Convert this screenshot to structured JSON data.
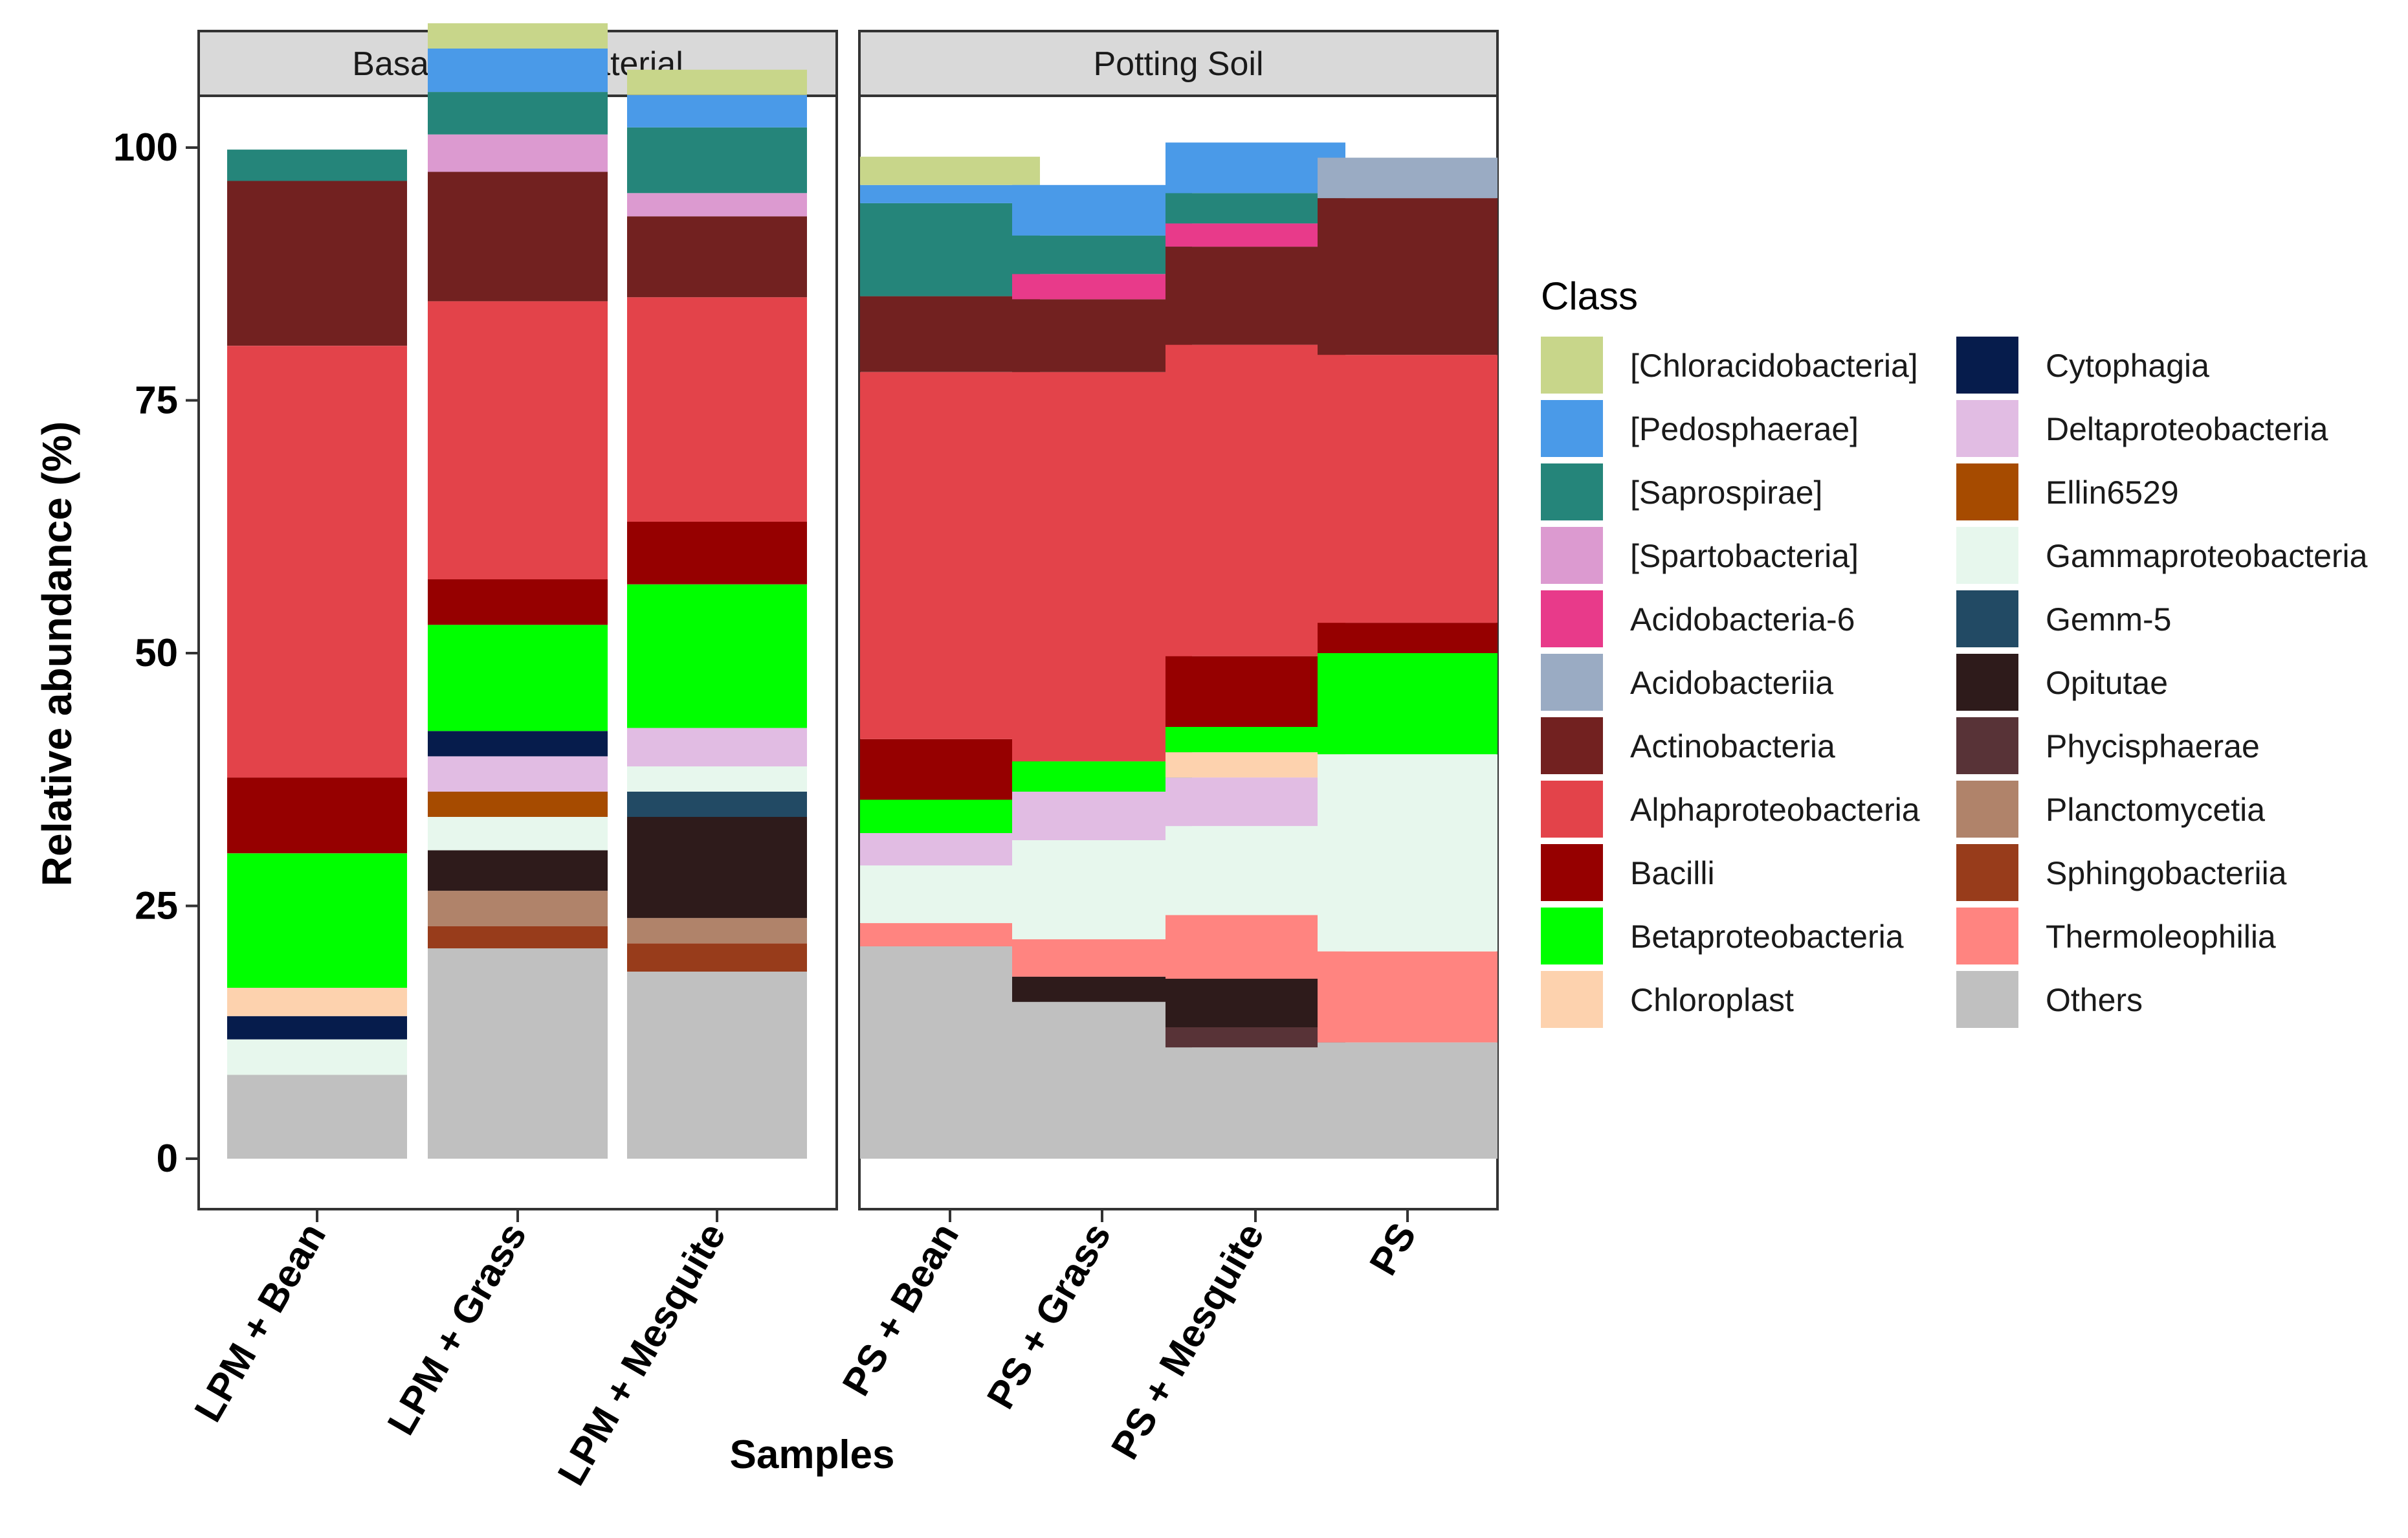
{
  "chart_data": {
    "type": "bar",
    "stacked": true,
    "ylabel": "Relative abundance (%)",
    "xlabel": "Samples",
    "ylim": [
      0,
      100
    ],
    "yticks": [
      0,
      25,
      50,
      75,
      100
    ],
    "legend_title": "Class",
    "legend_position": "right",
    "facets": [
      {
        "label": "Basalt Parent Material",
        "samples": [
          "LPM + Bean",
          "LPM + Grass",
          "LPM + Mesquite"
        ]
      },
      {
        "label": "Potting Soil",
        "samples": [
          "PS + Bean",
          "PS + Grass",
          "PS + Mesquite",
          "PS"
        ]
      }
    ],
    "classes": [
      {
        "name": "[Chloracidobacteria]",
        "color": "#c8d68a"
      },
      {
        "name": "[Pedosphaerae]",
        "color": "#4a9ae8"
      },
      {
        "name": "[Saprospirae]",
        "color": "#25857a"
      },
      {
        "name": "[Spartobacteria]",
        "color": "#dc9ad0"
      },
      {
        "name": "Acidobacteria-6",
        "color": "#e83a8a"
      },
      {
        "name": "Acidobacteriia",
        "color": "#9aabc3"
      },
      {
        "name": "Actinobacteria",
        "color": "#722120"
      },
      {
        "name": "Alphaproteobacteria",
        "color": "#e3434a"
      },
      {
        "name": "Bacilli",
        "color": "#960000"
      },
      {
        "name": "Betaproteobacteria",
        "color": "#00ff00"
      },
      {
        "name": "Chloroplast",
        "color": "#fdd2ae"
      },
      {
        "name": "Cytophagia",
        "color": "#061c4c"
      },
      {
        "name": "Deltaproteobacteria",
        "color": "#e1bce3"
      },
      {
        "name": "Ellin6529",
        "color": "#a64b00"
      },
      {
        "name": "Gammaproteobacteria",
        "color": "#e7f7ed"
      },
      {
        "name": "Gemm-5",
        "color": "#224a64"
      },
      {
        "name": "Opitutae",
        "color": "#2e1b1b"
      },
      {
        "name": "Phycisphaerae",
        "color": "#583337"
      },
      {
        "name": "Planctomycetia",
        "color": "#b0836a"
      },
      {
        "name": "Sphingobacteriia",
        "color": "#983c1b"
      },
      {
        "name": "Thermoleophilia",
        "color": "#ff8480"
      },
      {
        "name": "Others",
        "color": "#c0c0c0"
      }
    ],
    "stack_order_bottom_to_top": [
      "Others",
      "Sphingobacteriia",
      "Planctomycetia",
      "Phycisphaerae",
      "Opitutae",
      "Thermoleophilia",
      "Gemm-5",
      "Gammaproteobacteria",
      "Ellin6529",
      "Deltaproteobacteria",
      "Cytophagia",
      "Chloroplast",
      "Betaproteobacteria",
      "Bacilli",
      "Alphaproteobacteria",
      "Actinobacteria",
      "Acidobacteriia",
      "Acidobacteria-6",
      "[Spartobacteria]",
      "[Saprospirae]",
      "[Pedosphaerae]",
      "[Chloracidobacteria]"
    ],
    "series": [
      {
        "name": "Others",
        "values": [
          8.3,
          20.8,
          18.5,
          21.0,
          15.5,
          11.0,
          11.5
        ]
      },
      {
        "name": "Sphingobacteriia",
        "values": [
          0,
          2.2,
          2.8,
          0,
          0,
          0,
          0
        ]
      },
      {
        "name": "Planctomycetia",
        "values": [
          0,
          3.5,
          2.5,
          0,
          0,
          0,
          0
        ]
      },
      {
        "name": "Phycisphaerae",
        "values": [
          0,
          0,
          0,
          0,
          0,
          2.0,
          0
        ]
      },
      {
        "name": "Opitutae",
        "values": [
          0,
          4.0,
          10.0,
          0,
          2.5,
          4.8,
          0
        ]
      },
      {
        "name": "Thermoleophilia",
        "values": [
          0,
          0,
          0,
          2.3,
          3.7,
          6.3,
          9.0
        ]
      },
      {
        "name": "Gemm-5",
        "values": [
          0,
          0,
          2.5,
          0,
          0,
          0,
          0
        ]
      },
      {
        "name": "Gammaproteobacteria",
        "values": [
          3.5,
          3.3,
          2.5,
          5.7,
          9.8,
          8.8,
          19.5
        ]
      },
      {
        "name": "Ellin6529",
        "values": [
          0,
          2.5,
          0,
          0,
          0,
          0,
          0
        ]
      },
      {
        "name": "Deltaproteobacteria",
        "values": [
          0,
          3.5,
          3.8,
          3.2,
          4.8,
          4.8,
          0
        ]
      },
      {
        "name": "Cytophagia",
        "values": [
          2.3,
          2.5,
          0,
          0,
          0,
          0,
          0
        ]
      },
      {
        "name": "Chloroplast",
        "values": [
          2.8,
          0,
          0,
          0,
          0,
          2.5,
          0
        ]
      },
      {
        "name": "Betaproteobacteria",
        "values": [
          13.3,
          10.5,
          14.2,
          3.3,
          3.0,
          2.5,
          10.0
        ]
      },
      {
        "name": "Bacilli",
        "values": [
          7.5,
          4.5,
          6.2,
          6.0,
          0,
          7.0,
          3.0
        ]
      },
      {
        "name": "Alphaproteobacteria",
        "values": [
          42.7,
          27.5,
          22.2,
          36.3,
          38.5,
          30.8,
          26.5
        ]
      },
      {
        "name": "Actinobacteria",
        "values": [
          16.3,
          12.8,
          8.0,
          7.5,
          7.2,
          9.7,
          15.5
        ]
      },
      {
        "name": "Acidobacteriia",
        "values": [
          0,
          0,
          0,
          0,
          0,
          0,
          4.0
        ]
      },
      {
        "name": "Acidobacteria-6",
        "values": [
          0,
          0,
          0,
          0,
          2.5,
          2.3,
          0
        ]
      },
      {
        "name": "[Spartobacteria]",
        "values": [
          0,
          3.7,
          2.3,
          0,
          0,
          0,
          0
        ]
      },
      {
        "name": "[Saprospirae]",
        "values": [
          3.1,
          4.2,
          6.5,
          9.2,
          3.8,
          3.0,
          0
        ]
      },
      {
        "name": "[Pedosphaerae]",
        "values": [
          0,
          4.3,
          3.2,
          1.8,
          5.0,
          5.0,
          0
        ]
      },
      {
        "name": "[Chloracidobacteria]",
        "values": [
          0,
          2.5,
          2.5,
          2.8,
          0,
          0,
          0
        ]
      }
    ]
  }
}
